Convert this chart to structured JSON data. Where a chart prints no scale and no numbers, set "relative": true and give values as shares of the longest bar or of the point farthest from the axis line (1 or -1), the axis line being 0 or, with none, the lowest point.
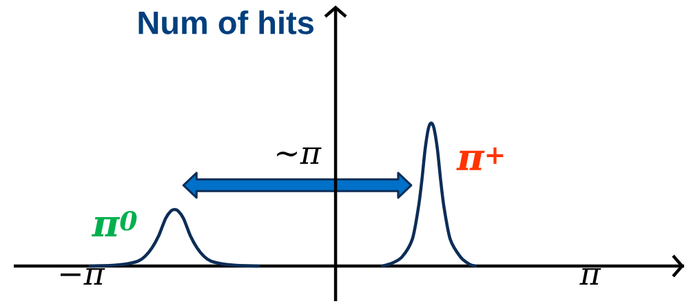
{
  "chart_data": {
    "type": "line",
    "ylabel": "Num of hits",
    "relative": true,
    "line_style": "solid",
    "xlim": [
      -3.97,
      4.3
    ],
    "xticks": [
      {
        "value": -3.1416,
        "label": "−π"
      },
      {
        "value": 3.1416,
        "label": "π"
      }
    ],
    "annotations": [
      "~π"
    ],
    "series": [
      {
        "name": "π$^{0}$",
        "color": "#0c2d57",
        "x": [
          -3.031,
          -2.751,
          -2.581,
          -2.437,
          -2.352,
          -2.267,
          -2.182,
          -2.097,
          -2.029,
          -1.987,
          -1.944,
          -1.876,
          -1.792,
          -1.707,
          -1.622,
          -1.537,
          -1.393,
          -1.223,
          -0.951
        ],
        "values": [
          0,
          0.005,
          0.014,
          0.034,
          0.067,
          0.125,
          0.212,
          0.333,
          0.386,
          0.395,
          0.386,
          0.333,
          0.212,
          0.125,
          0.067,
          0.034,
          0.014,
          0.005,
          0
        ]
      },
      {
        "name": "π$^{+}$",
        "color": "#0c2d57",
        "x": [
          0.577,
          0.696,
          0.819,
          0.947,
          1.023,
          1.066,
          1.104,
          1.146,
          1.18,
          1.214,
          1.257,
          1.295,
          1.337,
          1.414,
          1.541,
          1.647,
          1.724
        ],
        "values": [
          0,
          0.02,
          0.063,
          0.188,
          0.414,
          0.607,
          0.814,
          0.964,
          1,
          0.964,
          0.814,
          0.607,
          0.414,
          0.188,
          0.063,
          0.014,
          0
        ]
      }
    ]
  }
}
